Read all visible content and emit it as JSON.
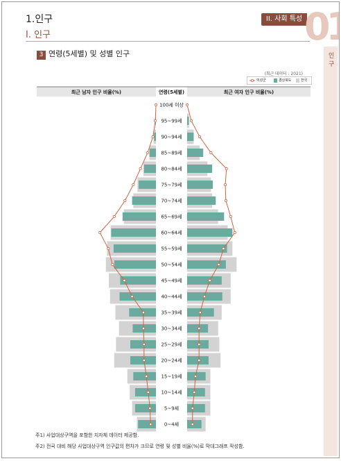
{
  "header": {
    "chapter": "1.인구",
    "subtitle": "Ⅰ. 인구",
    "tag": "II. 사회 특성",
    "big_number": "01",
    "side_label": "인구"
  },
  "section": {
    "number": "3",
    "title": "연령(5세별) 및 성별 인구"
  },
  "source_note": "(최근 데이터 : 2021)",
  "legend": {
    "items": [
      "의성군",
      "경상북도",
      "전국"
    ]
  },
  "chart_data": {
    "type": "bar",
    "left_header": "최근 남자 인구 비율(%)",
    "center_header": "연령(5세별)",
    "right_header": "최근 여자 인구 비율(%)",
    "categories": [
      "100세 이상",
      "95~99세",
      "90~94세",
      "85~89세",
      "80~84세",
      "75~79세",
      "70~74세",
      "65~69세",
      "60~64세",
      "55~59세",
      "50~54세",
      "45~49세",
      "40~44세",
      "35~39세",
      "30~34세",
      "25~29세",
      "20~24세",
      "15~19세",
      "10~14세",
      "5~9세",
      "0~4세"
    ],
    "xlim": [
      0,
      10
    ],
    "series": [
      {
        "name": "의성군",
        "male": [
          0.0,
          0.1,
          0.5,
          1.4,
          2.6,
          3.8,
          5.2,
          7.0,
          9.4,
          8.0,
          7.3,
          5.3,
          4.0,
          2.1,
          2.1,
          2.0,
          2.0,
          1.6,
          1.3,
          1.0,
          0.9
        ],
        "female": [
          0.0,
          0.7,
          2.1,
          4.0,
          6.6,
          6.4,
          6.5,
          7.3,
          8.0,
          6.1,
          5.3,
          3.8,
          2.9,
          2.2,
          2.0,
          2.0,
          2.0,
          1.4,
          1.2,
          0.9,
          0.9
        ]
      },
      {
        "name": "경상북도",
        "male": [
          0.0,
          0.1,
          0.3,
          1.1,
          2.0,
          2.9,
          4.0,
          5.6,
          7.5,
          7.1,
          7.0,
          6.0,
          6.1,
          4.5,
          3.9,
          4.3,
          4.3,
          3.8,
          3.5,
          3.5,
          3.0
        ],
        "female": [
          0.0,
          0.3,
          1.1,
          2.7,
          4.2,
          4.3,
          4.8,
          6.2,
          7.6,
          6.7,
          6.5,
          5.8,
          5.9,
          4.5,
          3.5,
          3.6,
          3.6,
          3.1,
          3.0,
          3.0,
          2.4
        ]
      },
      {
        "name": "전국",
        "male": [
          0.0,
          0.1,
          0.4,
          1.1,
          2.1,
          3.1,
          3.8,
          5.4,
          7.6,
          8.2,
          8.4,
          7.9,
          7.7,
          6.8,
          6.2,
          6.7,
          7.0,
          4.8,
          4.4,
          4.0,
          3.2
        ],
        "female": [
          0.0,
          0.3,
          1.1,
          2.1,
          3.4,
          4.0,
          4.2,
          5.2,
          6.8,
          7.6,
          8.3,
          7.3,
          7.3,
          5.8,
          5.2,
          5.4,
          5.6,
          3.9,
          3.9,
          3.9,
          3.1
        ]
      }
    ],
    "colors": {
      "local": "#d0633f",
      "province": "#6aaa9f",
      "nation": "#d3d3d3"
    }
  },
  "notes": [
    "주1) 사업대상구역을 포함한 지자체 데이터 제공함.",
    "주2) 전국 대비 해당 사업대상구역 인구값의 편차가 크므로 연령 및 성별 비율(%)로 막대그래프 작성함."
  ]
}
